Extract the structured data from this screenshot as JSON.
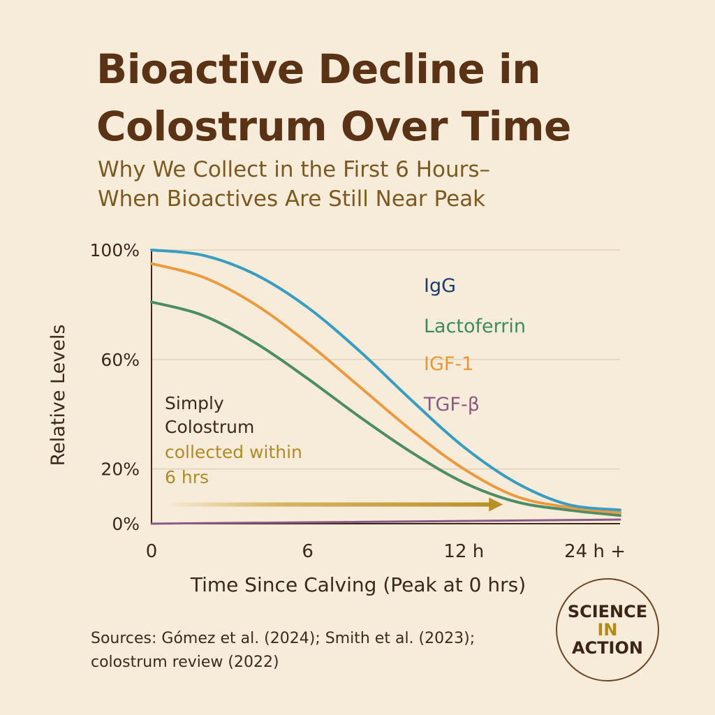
{
  "title": {
    "line1": "Bioactive Decline in",
    "line2": "Colostrum Over Time"
  },
  "subtitle": {
    "line1": "Why We Collect in the First 6 Hours–",
    "line2": "When Bioactives Are Still Near Peak"
  },
  "chart_data": {
    "type": "line",
    "ylabel": "Relative Levels",
    "xlabel": "Time Since Calving (Peak at 0 hrs)",
    "y_ticks": [
      {
        "value": 0,
        "label": "0%"
      },
      {
        "value": 20,
        "label": "20%"
      },
      {
        "value": 60,
        "label": "60%"
      },
      {
        "value": 100,
        "label": "100%"
      }
    ],
    "x_ticks": [
      {
        "value": 0,
        "label": "0"
      },
      {
        "value": 6,
        "label": "6"
      },
      {
        "value": 12,
        "label": "12 h"
      },
      {
        "value": 18,
        "label": "24 h +"
      }
    ],
    "xlim": [
      0,
      18
    ],
    "ylim": [
      0,
      100
    ],
    "series": [
      {
        "name": "IgG",
        "legend_color": "#1e3a6e",
        "line_color": "#3a9cc0",
        "x": [
          0,
          2,
          4,
          6,
          8,
          10,
          12,
          14,
          16,
          18
        ],
        "y": [
          100,
          98,
          91,
          79,
          63,
          45,
          28,
          15,
          7,
          5
        ]
      },
      {
        "name": "Lactoferrin",
        "legend_color": "#3e8a5e",
        "line_color": "#4e8c66",
        "x": [
          0,
          2,
          4,
          6,
          8,
          10,
          12,
          14,
          16,
          18
        ],
        "y": [
          81,
          76,
          66,
          53,
          39,
          26,
          15,
          8,
          5,
          3
        ]
      },
      {
        "name": "IGF-1",
        "legend_color": "#e8963a",
        "line_color": "#eb9a40",
        "x": [
          0,
          2,
          4,
          6,
          8,
          10,
          12,
          14,
          16,
          18
        ],
        "y": [
          95,
          90,
          80,
          66,
          50,
          34,
          20,
          10,
          6,
          4
        ]
      },
      {
        "name": "TGF-β",
        "legend_color": "#8a5a86",
        "line_color": "#8a5a86",
        "x": [
          0,
          18
        ],
        "y": [
          0,
          1.5
        ]
      }
    ],
    "annotation": {
      "line1": "Simply",
      "line2": "Colostrum",
      "line3": "collected within",
      "line4": "6 hrs",
      "dark_color": "#3c2a1c",
      "accent_color": "#b08a2a"
    },
    "arrow": {
      "x_start": 0.5,
      "x_end": 13.5,
      "y": 7
    }
  },
  "sources": {
    "line1": "Sources: Gómez et al. (2024); Smith et al. (2023);",
    "line2": "colostrum review (2022)"
  },
  "badge": {
    "line1": "SCIENCE",
    "line2": "IN",
    "line3": "ACTION"
  }
}
